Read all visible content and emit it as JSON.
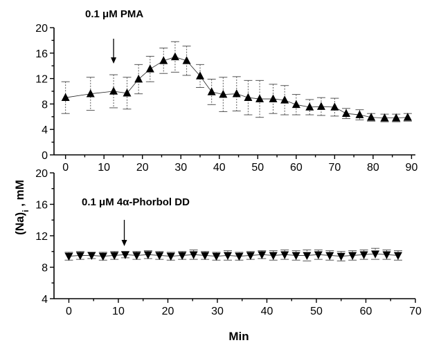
{
  "y_axis_title_main": "(Na)",
  "y_axis_title_sub": "i",
  "y_axis_title_unit": " , mM",
  "x_axis_title": "Min",
  "chart_data": [
    {
      "type": "line",
      "panel_label": "0.1 μM PMA",
      "marker": "triangle-up",
      "arrow_x": 12.5,
      "xlim": [
        -3,
        91
      ],
      "ylim": [
        0,
        20
      ],
      "xticks": [
        0,
        10,
        20,
        30,
        40,
        50,
        60,
        70,
        80,
        90
      ],
      "yticks": [
        0,
        4,
        8,
        12,
        16,
        20
      ],
      "x": [
        0,
        6.5,
        12.5,
        16,
        19,
        22,
        25.5,
        28.5,
        31.5,
        35,
        38,
        41,
        44.5,
        47.5,
        50.5,
        54,
        57,
        60,
        63.5,
        66.5,
        70,
        73,
        76.5,
        79.5,
        83,
        86,
        89
      ],
      "y": [
        9.0,
        9.6,
        10.0,
        9.7,
        11.9,
        13.5,
        14.8,
        15.4,
        14.8,
        12.4,
        9.9,
        9.5,
        9.6,
        9.0,
        8.8,
        8.8,
        8.6,
        7.9,
        7.5,
        7.6,
        7.5,
        6.5,
        6.3,
        5.9,
        5.8,
        5.8,
        5.9
      ],
      "err": [
        2.5,
        2.6,
        2.6,
        2.5,
        2.3,
        2.0,
        2.0,
        2.4,
        2.3,
        1.8,
        2.0,
        2.7,
        2.7,
        2.7,
        2.9,
        2.3,
        2.3,
        1.6,
        1.2,
        1.4,
        1.4,
        0.8,
        0.8,
        0.6,
        0.6,
        0.6,
        0.6
      ]
    },
    {
      "type": "line",
      "panel_label": "0.1 μM 4α-Phorbol DD",
      "marker": "triangle-down",
      "arrow_x": 11.2,
      "xlim": [
        -3,
        70
      ],
      "ylim": [
        4,
        20
      ],
      "xticks": [
        0,
        10,
        20,
        30,
        40,
        50,
        60,
        70
      ],
      "yticks": [
        4,
        8,
        12,
        16,
        20
      ],
      "x": [
        0,
        2.3,
        4.6,
        6.9,
        9.2,
        11.4,
        13.7,
        16,
        18.3,
        20.6,
        22.9,
        25.2,
        27.5,
        29.8,
        32.1,
        34.4,
        36.7,
        39,
        41.3,
        43.6,
        45.9,
        48.1,
        50.4,
        52.7,
        55,
        57.3,
        59.6,
        61.9,
        64.2,
        66.5
      ],
      "y": [
        9.4,
        9.5,
        9.5,
        9.4,
        9.5,
        9.6,
        9.5,
        9.6,
        9.5,
        9.4,
        9.5,
        9.6,
        9.5,
        9.4,
        9.5,
        9.4,
        9.5,
        9.6,
        9.5,
        9.6,
        9.5,
        9.5,
        9.6,
        9.5,
        9.4,
        9.5,
        9.6,
        9.7,
        9.6,
        9.5
      ],
      "err": [
        0.5,
        0.5,
        0.4,
        0.5,
        0.5,
        0.4,
        0.5,
        0.5,
        0.5,
        0.5,
        0.5,
        0.6,
        0.5,
        0.5,
        0.6,
        0.5,
        0.5,
        0.5,
        0.6,
        0.6,
        0.6,
        0.7,
        0.6,
        0.6,
        0.6,
        0.6,
        0.6,
        0.7,
        0.6,
        0.6
      ]
    }
  ]
}
